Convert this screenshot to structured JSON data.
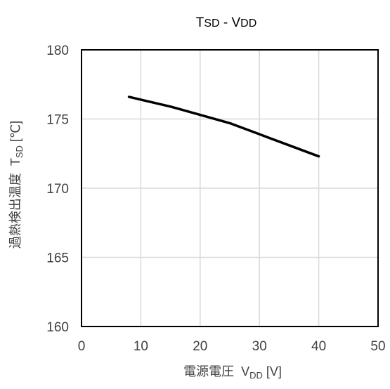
{
  "chart_data": {
    "type": "line",
    "title": {
      "main": "T",
      "main_sub": "SD",
      "separator": " - ",
      "var": "V",
      "var_sub": "DD"
    },
    "xlabel": {
      "prefix": "電源電圧  V",
      "sub": "DD",
      "suffix": " [V]"
    },
    "ylabel": {
      "prefix": "過熱検出温度  T",
      "sub": "SD",
      "suffix": " [℃]"
    },
    "xlim": [
      0,
      50
    ],
    "ylim": [
      160,
      180
    ],
    "xticks": [
      0,
      10,
      20,
      30,
      40,
      50
    ],
    "yticks": [
      160,
      165,
      170,
      175,
      180
    ],
    "grid": true,
    "series": [
      {
        "color": "#000000",
        "x": [
          8,
          10,
          15,
          20,
          25,
          30,
          35,
          40
        ],
        "y": [
          176.6,
          176.4,
          175.9,
          175.3,
          174.7,
          173.9,
          173.1,
          172.3
        ]
      }
    ]
  }
}
